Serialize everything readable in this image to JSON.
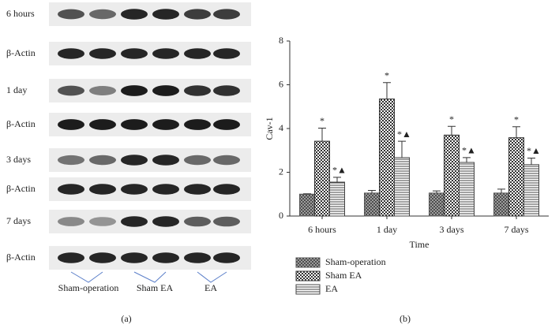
{
  "blot": {
    "rows": [
      "6 hours",
      "β-Actin",
      "1 day",
      "β-Actin",
      "3 days",
      "β-Actin",
      "7 days",
      "β-Actin"
    ],
    "groups": [
      "Sham-operation",
      "Sham EA",
      "EA"
    ],
    "caption": "(a)"
  },
  "chart_data": {
    "type": "bar",
    "caption": "(b)",
    "x_label": "Time",
    "y_label": "Cav-1",
    "categories": [
      "6 hours",
      "1 day",
      "3 days",
      "7 days"
    ],
    "series": [
      {
        "name": "Sham-operation",
        "pattern": "crosshatch",
        "color": "#555555",
        "values": [
          1.0,
          1.05,
          1.05,
          1.05
        ],
        "errors": [
          0.02,
          0.12,
          0.1,
          0.18
        ]
      },
      {
        "name": "Sham EA",
        "pattern": "checker",
        "color": "#333333",
        "values": [
          3.42,
          5.35,
          3.7,
          3.58
        ],
        "errors": [
          0.6,
          0.75,
          0.4,
          0.5
        ],
        "markers": [
          "*",
          "*",
          "*",
          "*"
        ]
      },
      {
        "name": "EA",
        "pattern": "hlines",
        "color": "#444444",
        "values": [
          1.55,
          2.67,
          2.45,
          2.35
        ],
        "errors": [
          0.22,
          0.75,
          0.22,
          0.3
        ],
        "markers": [
          "*▲",
          "*▲",
          "*▲",
          "*▲"
        ]
      }
    ],
    "ylim": [
      0,
      8
    ],
    "yticks": [
      0,
      2,
      4,
      6,
      8
    ],
    "legend": "bottom-left"
  }
}
